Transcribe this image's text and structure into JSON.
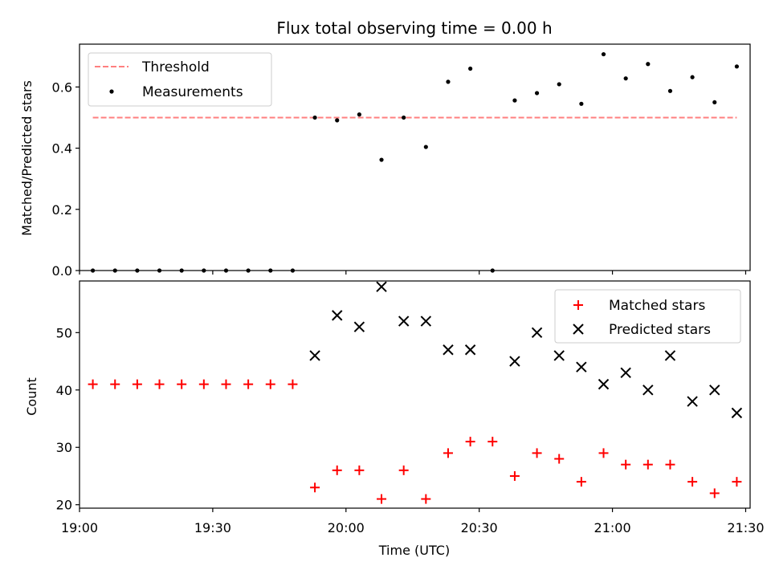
{
  "chart_data": [
    {
      "type": "scatter",
      "title": "Flux total observing time = 0.00 h",
      "xlabel": "",
      "ylabel": "Matched/Predicted stars",
      "ylim": [
        0,
        0.74
      ],
      "yticks": [
        0.0,
        0.2,
        0.4,
        0.6
      ],
      "ytick_labels": [
        "0.0",
        "0.2",
        "0.4",
        "0.6"
      ],
      "legend": "upper-left",
      "threshold": {
        "name": "Threshold",
        "value": 0.5,
        "x_range": [
          "19:03",
          "21:28"
        ],
        "color": "#ff7f7f"
      },
      "series": [
        {
          "name": "Measurements",
          "color": "#000000",
          "x": [
            "19:03",
            "19:08",
            "19:13",
            "19:18",
            "19:23",
            "19:28",
            "19:33",
            "19:38",
            "19:43",
            "19:48",
            "19:53",
            "19:58",
            "20:03",
            "20:08",
            "20:13",
            "20:18",
            "20:23",
            "20:28",
            "20:33",
            "20:38",
            "20:43",
            "20:48",
            "20:53",
            "20:58",
            "21:03",
            "21:08",
            "21:13",
            "21:18",
            "21:23",
            "21:28"
          ],
          "values": [
            0,
            0,
            0,
            0,
            0,
            0,
            0,
            0,
            0,
            0,
            0.5,
            0.491,
            0.51,
            0.362,
            0.5,
            0.404,
            0.617,
            0.66,
            0,
            0.556,
            0.58,
            0.609,
            0.545,
            0.707,
            0.628,
            0.675,
            0.587,
            0.632,
            0.55,
            0.667
          ]
        }
      ]
    },
    {
      "type": "scatter",
      "xlabel": "Time (UTC)",
      "ylabel": "Count",
      "xlim": [
        "19:00",
        "21:31"
      ],
      "ylim": [
        19.4,
        59
      ],
      "xticks": [
        "19:00",
        "19:30",
        "20:00",
        "20:30",
        "21:00",
        "21:30"
      ],
      "yticks": [
        20,
        30,
        40,
        50
      ],
      "ytick_labels": [
        "20",
        "30",
        "40",
        "50"
      ],
      "legend": "upper-right",
      "series": [
        {
          "name": "Matched stars",
          "color": "#ff0000",
          "marker": "+",
          "x": [
            "19:03",
            "19:08",
            "19:13",
            "19:18",
            "19:23",
            "19:28",
            "19:33",
            "19:38",
            "19:43",
            "19:48",
            "19:53",
            "19:58",
            "20:03",
            "20:08",
            "20:13",
            "20:18",
            "20:23",
            "20:28",
            "20:33",
            "20:38",
            "20:43",
            "20:48",
            "20:53",
            "20:58",
            "21:03",
            "21:08",
            "21:13",
            "21:18",
            "21:23",
            "21:28"
          ],
          "values": [
            41,
            41,
            41,
            41,
            41,
            41,
            41,
            41,
            41,
            41,
            23,
            26,
            26,
            21,
            26,
            21,
            29,
            31,
            31,
            25,
            29,
            28,
            24,
            29,
            27,
            27,
            27,
            24,
            22,
            24
          ]
        },
        {
          "name": "Predicted stars",
          "color": "#000000",
          "marker": "x",
          "x": [
            "19:53",
            "19:58",
            "20:03",
            "20:08",
            "20:13",
            "20:18",
            "20:23",
            "20:28",
            "20:38",
            "20:43",
            "20:48",
            "20:53",
            "20:58",
            "21:03",
            "21:08",
            "21:13",
            "21:18",
            "21:23",
            "21:28"
          ],
          "values": [
            46,
            53,
            51,
            58,
            52,
            52,
            47,
            47,
            45,
            50,
            46,
            44,
            41,
            43,
            40,
            46,
            38,
            40,
            36
          ]
        }
      ]
    }
  ]
}
